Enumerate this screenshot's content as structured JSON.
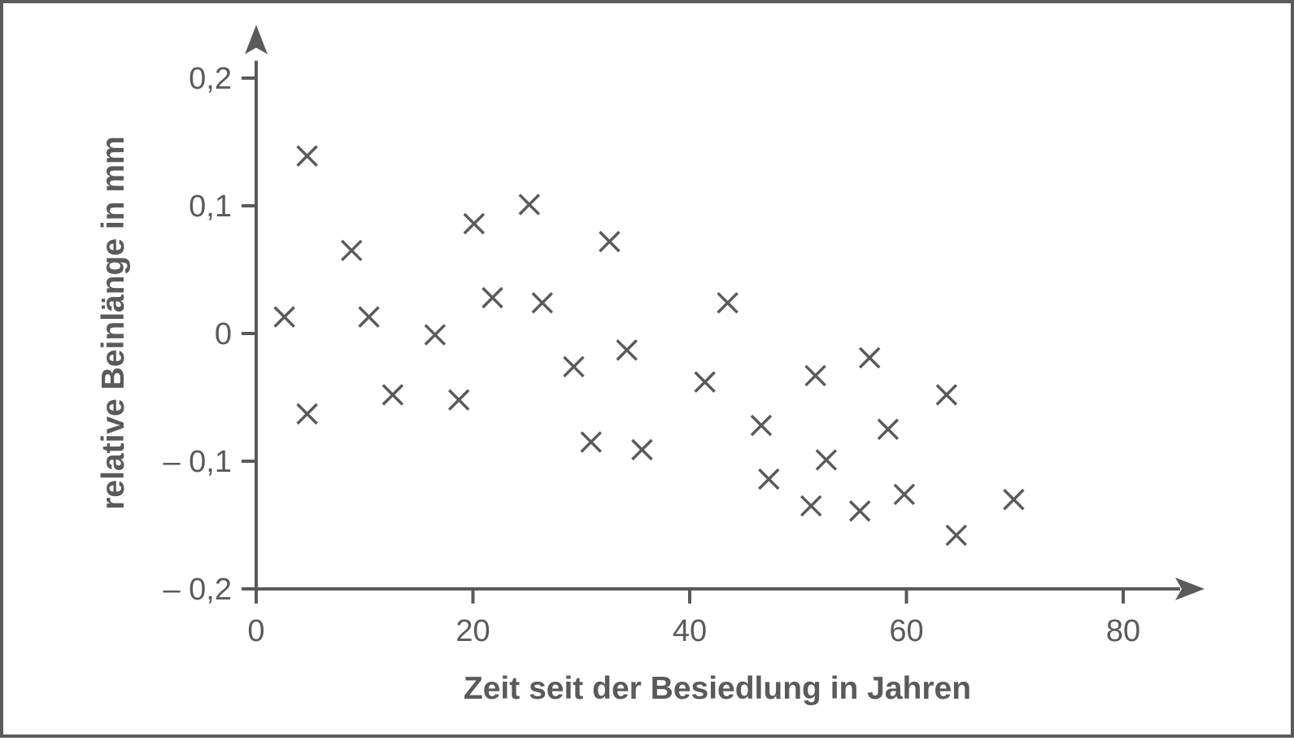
{
  "chart_data": {
    "type": "scatter",
    "title": "",
    "xlabel": "Zeit seit der Besiedlung in Jahren",
    "ylabel": "relative Beinlänge in mm",
    "xlim": [
      0,
      86
    ],
    "ylim": [
      -0.2,
      0.22
    ],
    "x_ticks": [
      {
        "value": 0,
        "label": "0"
      },
      {
        "value": 20,
        "label": "20"
      },
      {
        "value": 40,
        "label": "40"
      },
      {
        "value": 60,
        "label": "60"
      },
      {
        "value": 80,
        "label": "80"
      }
    ],
    "y_ticks": [
      {
        "value": 0.2,
        "label": "0,2"
      },
      {
        "value": 0.1,
        "label": "0,1"
      },
      {
        "value": 0,
        "label": "0"
      },
      {
        "value": -0.1,
        "label": "– 0,1"
      },
      {
        "value": -0.2,
        "label": "– 0,2"
      }
    ],
    "grid": false,
    "marker": "x",
    "color": "#5a5a5a",
    "points": [
      {
        "x": 2.6,
        "y": 0.013
      },
      {
        "x": 4.7,
        "y": 0.139
      },
      {
        "x": 4.7,
        "y": -0.063
      },
      {
        "x": 8.8,
        "y": 0.065
      },
      {
        "x": 10.4,
        "y": 0.013
      },
      {
        "x": 12.6,
        "y": -0.048
      },
      {
        "x": 16.5,
        "y": -0.001
      },
      {
        "x": 18.7,
        "y": -0.052
      },
      {
        "x": 20.1,
        "y": 0.086
      },
      {
        "x": 21.8,
        "y": 0.028
      },
      {
        "x": 25.2,
        "y": 0.101
      },
      {
        "x": 26.4,
        "y": 0.024
      },
      {
        "x": 29.3,
        "y": -0.026
      },
      {
        "x": 30.9,
        "y": -0.085
      },
      {
        "x": 32.6,
        "y": 0.072
      },
      {
        "x": 34.2,
        "y": -0.013
      },
      {
        "x": 35.6,
        "y": -0.091
      },
      {
        "x": 41.4,
        "y": -0.038
      },
      {
        "x": 43.5,
        "y": 0.024
      },
      {
        "x": 46.6,
        "y": -0.072
      },
      {
        "x": 47.3,
        "y": -0.114
      },
      {
        "x": 51.2,
        "y": -0.135
      },
      {
        "x": 51.6,
        "y": -0.033
      },
      {
        "x": 52.6,
        "y": -0.099
      },
      {
        "x": 55.7,
        "y": -0.139
      },
      {
        "x": 56.6,
        "y": -0.019
      },
      {
        "x": 58.3,
        "y": -0.075
      },
      {
        "x": 59.8,
        "y": -0.126
      },
      {
        "x": 63.7,
        "y": -0.048
      },
      {
        "x": 64.6,
        "y": -0.158
      },
      {
        "x": 69.9,
        "y": -0.13
      }
    ]
  }
}
